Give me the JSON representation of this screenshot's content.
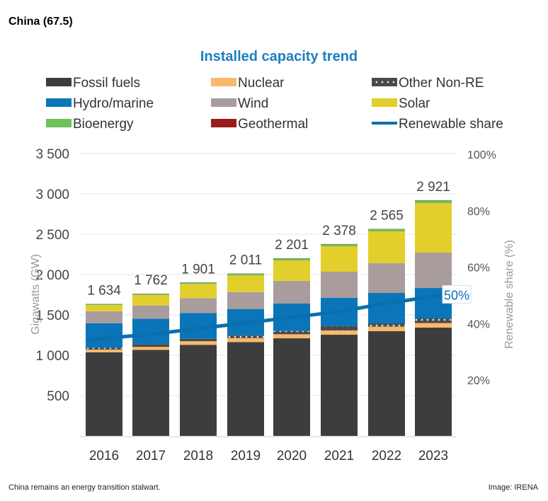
{
  "header": "China (67.5)",
  "caption": "China remains an energy transition stalwart.",
  "credit": "Image: IRENA",
  "chart_data": {
    "type": "bar",
    "stacked": true,
    "title": "Installed capacity trend",
    "ylabel": "Gigawatts (GW)",
    "y2label": "Renewable share (%)",
    "ylim": [
      0,
      3500
    ],
    "y2lim": [
      0,
      100
    ],
    "yticks": [
      "500",
      "1 000",
      "1 500",
      "2 000",
      "2 500",
      "3 000",
      "3 500"
    ],
    "y2ticks": [
      "20%",
      "40%",
      "60%",
      "80%",
      "100%"
    ],
    "grid": true,
    "legend_position": "top",
    "categories": [
      "2016",
      "2017",
      "2018",
      "2019",
      "2020",
      "2021",
      "2022",
      "2023"
    ],
    "totals": [
      "1 634",
      "1 762",
      "1 901",
      "2 011",
      "2 201",
      "2 378",
      "2 565",
      "2 921"
    ],
    "series": [
      {
        "name": "Fossil fuels",
        "color": "#3d3d3d",
        "values": [
          1036,
          1067,
          1129,
          1163,
          1210,
          1254,
          1298,
          1342
        ]
      },
      {
        "name": "Nuclear",
        "color": "#f8b96b",
        "values": [
          34,
          36,
          45,
          49,
          50,
          53,
          56,
          57
        ]
      },
      {
        "name": "Other Non-RE",
        "color": "#555555",
        "pattern": "dots",
        "values": [
          22,
          35,
          30,
          35,
          40,
          53,
          41,
          57
        ]
      },
      {
        "name": "Hydro/marine",
        "color": "#0a75b8",
        "values": [
          305,
          315,
          320,
          326,
          340,
          351,
          377,
          377
        ]
      },
      {
        "name": "Wind",
        "color": "#a89c9c",
        "values": [
          148,
          164,
          184,
          210,
          282,
          324,
          368,
          439
        ]
      },
      {
        "name": "Solar",
        "color": "#e3cf2c",
        "values": [
          77,
          130,
          175,
          205,
          253,
          316,
          395,
          614
        ]
      },
      {
        "name": "Bioenergy",
        "color": "#6cc15c",
        "values": [
          12,
          15,
          18,
          23,
          26,
          27,
          30,
          35
        ]
      },
      {
        "name": "Geothermal",
        "color": "#9b1b1b",
        "values": [
          0.03,
          0.03,
          0.03,
          0.03,
          0.03,
          0.03,
          0.03,
          0.03
        ]
      }
    ],
    "line": {
      "name": "Renewable share",
      "color": "#0b6fad",
      "values": [
        34,
        36,
        38,
        40,
        42,
        44,
        47,
        50
      ],
      "end_label": "50%"
    }
  }
}
